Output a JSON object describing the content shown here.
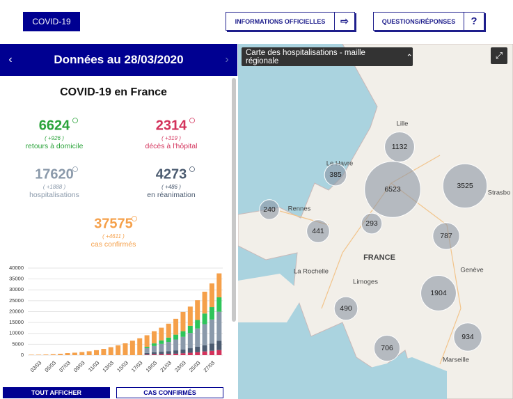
{
  "header": {
    "brand": "COVID-19",
    "buttons": [
      "INFORMATIONS OFFICIELLES",
      "QUESTIONS/RÉPONSES"
    ]
  },
  "panel": {
    "date_title": "Données au 28/03/2020",
    "title": "COVID-19 en France",
    "stats": [
      {
        "value": "6624",
        "delta": "( +926 )",
        "label": "retours à domicile",
        "color": "#2aa33a"
      },
      {
        "value": "2314",
        "delta": "( +319 )",
        "label": "décès à l'hôpital",
        "color": "#d3325b"
      },
      {
        "value": "17620",
        "delta": "( +1888 )",
        "label": "hospitalisations",
        "color": "#8a99aa"
      },
      {
        "value": "4273",
        "delta": "( +486 )",
        "label": "en réanimation",
        "color": "#4b5b70"
      },
      {
        "value": "37575",
        "delta": "( +4611 )",
        "label": "cas confirmés",
        "color": "#f5a04a"
      }
    ],
    "buttons": [
      "TOUT AFFICHER",
      "CAS CONFIRMÉS"
    ]
  },
  "chart_data": {
    "type": "bar",
    "stacked": true,
    "categories": [
      null,
      "03/03",
      null,
      "05/03",
      null,
      "07/03",
      null,
      "09/03",
      null,
      "11/03",
      null,
      "13/03",
      null,
      "15/03",
      null,
      "17/03",
      null,
      "19/03",
      null,
      "21/03",
      null,
      "23/03",
      null,
      "25/03",
      null,
      "27/03",
      null
    ],
    "ylim": [
      0,
      40000
    ],
    "yticks": [
      0,
      5000,
      10000,
      15000,
      20000,
      25000,
      30000,
      35000,
      40000
    ],
    "grid": true,
    "series": [
      {
        "color": "#d3325b",
        "values": [
          0,
          0,
          0,
          0,
          0,
          0,
          0,
          0,
          0,
          0,
          0,
          0,
          0,
          0,
          0,
          0,
          244,
          372,
          450,
          562,
          674,
          860,
          1100,
          1331,
          1696,
          1995,
          2314
        ]
      },
      {
        "color": "#4b5b70",
        "values": [
          0,
          0,
          0,
          0,
          0,
          0,
          0,
          0,
          0,
          0,
          0,
          0,
          0,
          0,
          0,
          0,
          771,
          931,
          1122,
          1297,
          1525,
          1746,
          2082,
          2516,
          2827,
          3375,
          4273
        ]
      },
      {
        "color": "#8a99aa",
        "values": [
          0,
          0,
          0,
          0,
          0,
          0,
          0,
          0,
          0,
          0,
          0,
          0,
          0,
          0,
          0,
          0,
          2200,
          2900,
          3600,
          4200,
          5000,
          5800,
          7000,
          8400,
          9700,
          11000,
          13347
        ]
      },
      {
        "color": "#2ec45a",
        "values": [
          0,
          0,
          0,
          0,
          0,
          0,
          0,
          0,
          0,
          0,
          0,
          0,
          0,
          0,
          0,
          0,
          600,
          1200,
          1600,
          2000,
          2200,
          2600,
          3300,
          3900,
          4900,
          5700,
          6624
        ]
      },
      {
        "color": "#f5a04a",
        "values": [
          191,
          212,
          285,
          423,
          613,
          949,
          1126,
          1412,
          1784,
          2281,
          2876,
          3661,
          4499,
          5423,
          6633,
          7730,
          5319,
          5592,
          5840,
          6400,
          7290,
          8850,
          8820,
          9086,
          10032,
          10894,
          11017
        ]
      }
    ]
  },
  "map": {
    "title": "Carte des hospitalisations - maille régionale",
    "bubbles": [
      1132,
      385,
      6523,
      3525,
      240,
      441,
      293,
      787,
      1904,
      490,
      934,
      706
    ],
    "places": [
      "Lille",
      "Le Havre",
      "Strasbo",
      "Rennes",
      "FRANCE",
      "La Rochelle",
      "Limoges",
      "Genève",
      "Marseille"
    ]
  }
}
